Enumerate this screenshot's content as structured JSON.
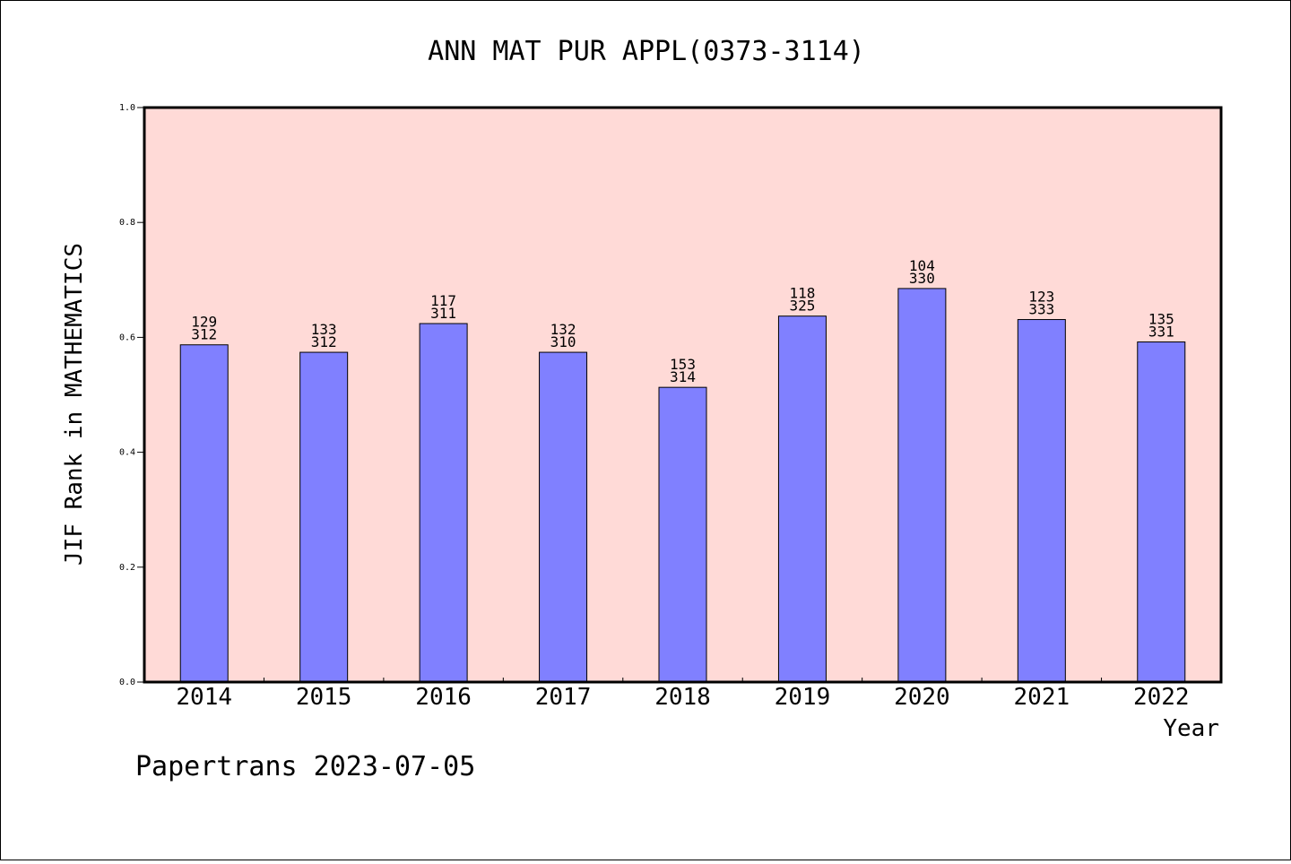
{
  "chart_data": {
    "type": "bar",
    "title": "ANN MAT PUR APPL(0373-3114)",
    "xlabel": "Year",
    "ylabel": "JIF Rank in MATHEMATICS",
    "ylim": [
      0,
      1.0
    ],
    "yticks": [
      "0.0",
      "0.2",
      "0.4",
      "0.6",
      "0.8",
      "1.0"
    ],
    "categories": [
      "2014",
      "2015",
      "2016",
      "2017",
      "2018",
      "2019",
      "2020",
      "2021",
      "2022"
    ],
    "values": [
      0.587,
      0.574,
      0.624,
      0.574,
      0.513,
      0.637,
      0.685,
      0.631,
      0.592
    ],
    "labels_top": [
      "129",
      "133",
      "117",
      "132",
      "153",
      "118",
      "104",
      "123",
      "135"
    ],
    "labels_bottom": [
      "312",
      "312",
      "311",
      "310",
      "314",
      "325",
      "330",
      "333",
      "331"
    ],
    "grid": false,
    "colors": {
      "plot_background": "#ffdad7",
      "bar": "#8080ff",
      "bar_edge": "#000000"
    }
  },
  "footer": "Papertrans 2023-07-05"
}
